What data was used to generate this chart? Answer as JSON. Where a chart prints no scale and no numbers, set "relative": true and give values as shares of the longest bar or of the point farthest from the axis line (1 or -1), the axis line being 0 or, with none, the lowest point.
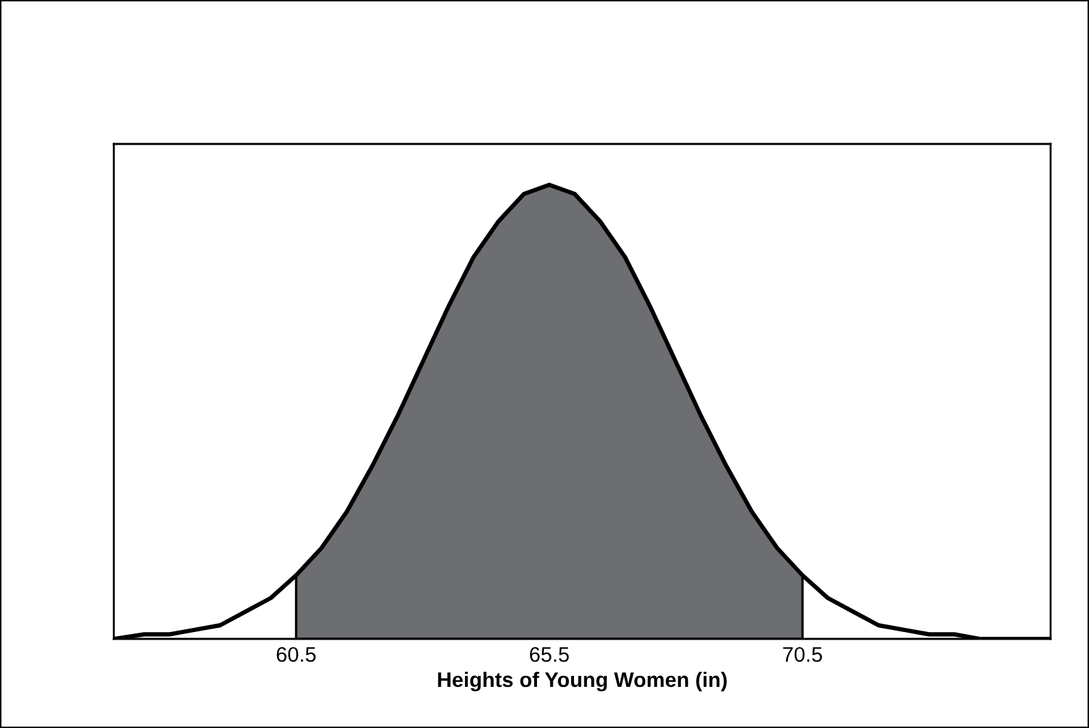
{
  "chart_data": {
    "type": "line",
    "relative": true,
    "xlabel": "Heights of Young Women (in)",
    "xlim": [
      56.9,
      75.4
    ],
    "xticks": [
      60.5,
      65.5,
      70.5
    ],
    "grid": false,
    "legend": false,
    "series": [
      {
        "type": "area",
        "color": "#6d6e71",
        "x": [
          60.5,
          61,
          61.5,
          62,
          62.5,
          63,
          63.5,
          64,
          64.5,
          65,
          65.5,
          66,
          66.5,
          67,
          67.5,
          68,
          68.5,
          69,
          69.5,
          70,
          70.5
        ],
        "values": [
          0.14,
          0.2,
          0.28,
          0.38,
          0.49,
          0.61,
          0.73,
          0.84,
          0.92,
          0.98,
          1,
          0.98,
          0.92,
          0.84,
          0.73,
          0.61,
          0.49,
          0.38,
          0.28,
          0.2,
          0.14
        ]
      },
      {
        "color": "#000000",
        "x": [
          56.9,
          57.5,
          58,
          58.5,
          59,
          59.5,
          60,
          60.5,
          61,
          61.5,
          62,
          62.5,
          63,
          63.5,
          64,
          64.5,
          65,
          65.5,
          66,
          66.5,
          67,
          67.5,
          68,
          68.5,
          69,
          69.5,
          70,
          70.5,
          71,
          71.5,
          72,
          72.5,
          73,
          73.5,
          74,
          74.5,
          75.4
        ],
        "values": [
          0,
          0.01,
          0.01,
          0.02,
          0.03,
          0.06,
          0.09,
          0.14,
          0.2,
          0.28,
          0.38,
          0.49,
          0.61,
          0.73,
          0.84,
          0.92,
          0.98,
          1,
          0.98,
          0.92,
          0.84,
          0.73,
          0.61,
          0.49,
          0.38,
          0.28,
          0.2,
          0.14,
          0.09,
          0.06,
          0.03,
          0.02,
          0.01,
          0.01,
          0,
          0,
          0
        ]
      }
    ]
  }
}
